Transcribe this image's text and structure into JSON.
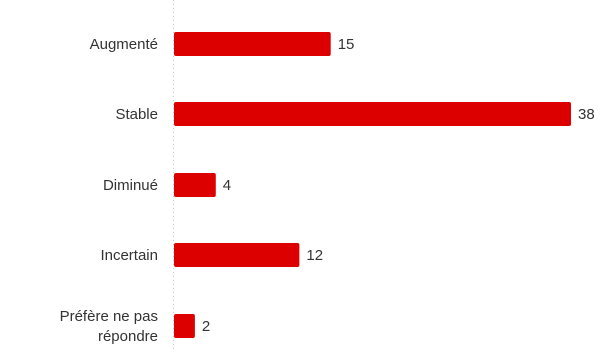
{
  "colors": {
    "bar": "#dd0000",
    "axis_line": "#cccccc",
    "label_text": "#333333"
  },
  "chart_data": {
    "type": "bar",
    "orientation": "horizontal",
    "categories": [
      "Augmenté",
      "Stable",
      "Diminué",
      "Incertain",
      "Préfère ne pas répondre"
    ],
    "category_lines": [
      [
        "Augmenté"
      ],
      [
        "Stable"
      ],
      [
        "Diminué"
      ],
      [
        "Incertain"
      ],
      [
        "Préfère ne pas",
        "répondre"
      ]
    ],
    "values": [
      15,
      38,
      4,
      12,
      2
    ],
    "data_labels": [
      "15",
      "38",
      "4",
      "12",
      "2"
    ],
    "xlim": [
      0,
      38
    ],
    "grid": false,
    "legend": "none"
  }
}
